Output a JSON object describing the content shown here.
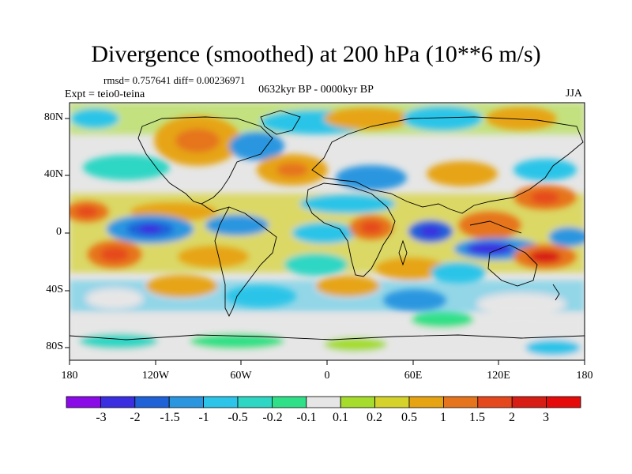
{
  "header": {
    "title": "Divergence (smoothed) at 200 hPa (10**6 m/s)",
    "stats": "rmsd= 0.757641 diff= 0.00236971",
    "period": "0632kyr BP - 0000kyr BP",
    "experiment": "Expt = teio0-teina",
    "season": "JJA"
  },
  "axes": {
    "lat_labels": [
      "80N",
      "40N",
      "0",
      "40S",
      "80S"
    ],
    "lon_labels": [
      "180",
      "120W",
      "60W",
      "0",
      "60E",
      "120E",
      "180"
    ]
  },
  "colorbar": {
    "labels": [
      "-3",
      "-2",
      "-1.5",
      "-1",
      "-0.5",
      "-0.2",
      "-0.1",
      "0.1",
      "0.2",
      "0.5",
      "1",
      "1.5",
      "2",
      "3"
    ],
    "colors": [
      "#8a0be8",
      "#3a2ee0",
      "#1f62d8",
      "#2a96e0",
      "#2cc4e8",
      "#2ed6c4",
      "#30e088",
      "#e6e6e6",
      "#a6dc2c",
      "#d6d22c",
      "#e6a412",
      "#e6741c",
      "#e6481e",
      "#d81e14",
      "#e60b0b"
    ]
  }
}
